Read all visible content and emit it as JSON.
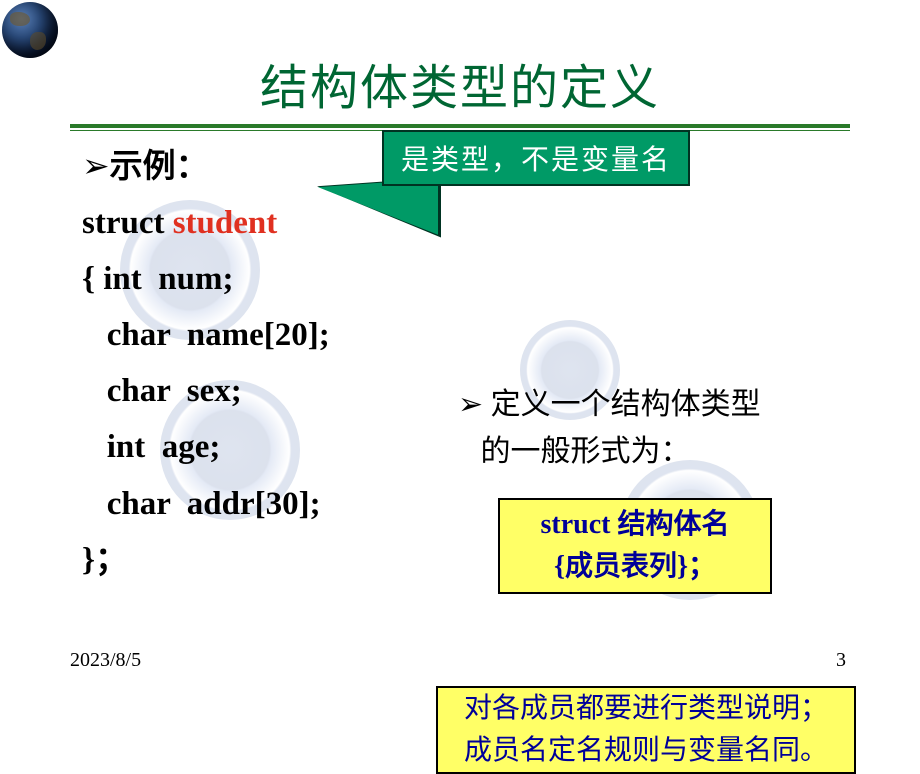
{
  "title": {
    "text": "结构体类型的定义",
    "color": "#006633",
    "fontsize": 48
  },
  "globe": {
    "name": "globe-icon"
  },
  "rule": {
    "color": "#2a7a2a"
  },
  "callout": {
    "text": "是类型，不是变量名",
    "bg": "#009a66",
    "border": "#003322",
    "text_color": "#ffffff",
    "fontsize": 28
  },
  "left": {
    "bullet_arrow": "➢",
    "heading": "示例：",
    "code_lines": [
      {
        "plain": "struct  ",
        "highlight": "student"
      },
      {
        "plain": "{ int  num;"
      },
      {
        "plain": "   char  name[20];"
      },
      {
        "plain": "   char  sex;"
      },
      {
        "plain": "   int  age;"
      },
      {
        "plain": "   char  addr[30];"
      },
      {
        "plain": "}；"
      }
    ],
    "highlight_color": "#e03020",
    "fontsize": 33
  },
  "right_bullet": {
    "arrow": "➢",
    "line1": "定义一个结构体类型",
    "line2": "的一般形式为：",
    "fontsize": 30
  },
  "ybox1": {
    "line1": "struct  结构体名",
    "line2": "{成员表列}；",
    "bg": "#ffff66",
    "text_color": "#000099",
    "border": "#000000",
    "fontsize": 28
  },
  "ybox2": {
    "line1": "对各成员都要进行类型说明；",
    "line2": "成员名定名规则与变量名同。",
    "bg": "#ffff66",
    "text_color": "#000099",
    "border": "#000000",
    "fontsize": 28
  },
  "footer": {
    "date": "2023/8/5",
    "page": "3",
    "fontsize": 20
  },
  "watermark": {
    "opacity": 0.18
  }
}
